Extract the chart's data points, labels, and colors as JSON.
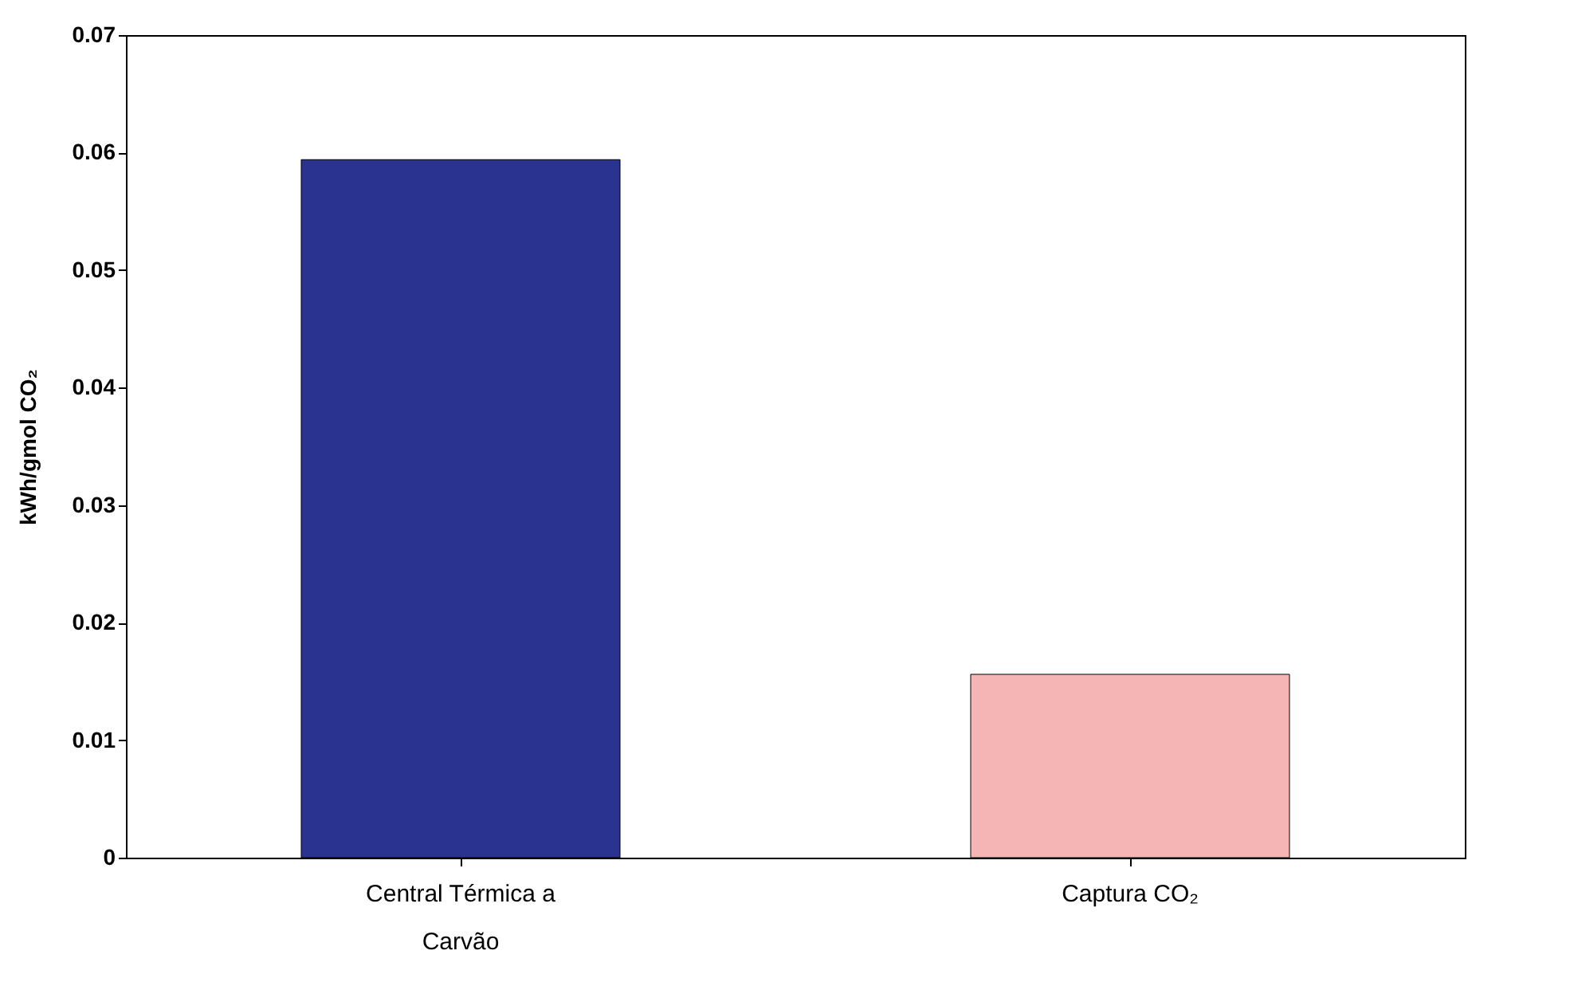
{
  "chart_data": {
    "type": "bar",
    "categories": [
      "Central Térmica a Carvão",
      "Captura CO₂"
    ],
    "values": [
      0.0594,
      0.0156
    ],
    "colors": [
      "#2b3390",
      "#f5b5b5"
    ],
    "ylabel": "kWh/gmol CO₂",
    "ylim": [
      0,
      0.07
    ],
    "yticks": [
      0,
      0.01,
      0.02,
      0.03,
      0.04,
      0.05,
      0.06,
      0.07
    ],
    "grid": false,
    "legend": false
  }
}
